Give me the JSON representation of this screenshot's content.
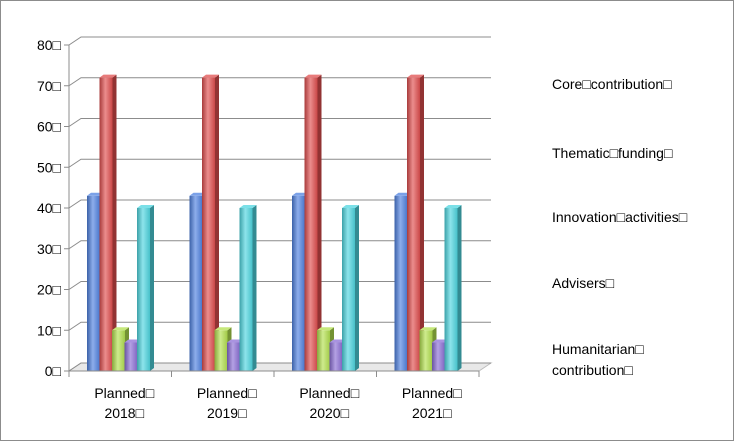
{
  "chart_data": {
    "type": "bar",
    "style": "3d-clustered-column",
    "categories": [
      "Planned□ 2018□",
      "Planned□ 2019□",
      "Planned□ 2020□",
      "Planned□ 2021□"
    ],
    "category_lines": [
      [
        "Planned□",
        "2018□"
      ],
      [
        "Planned□",
        "2019□"
      ],
      [
        "Planned□",
        "2020□"
      ],
      [
        "Planned□",
        "2021□"
      ]
    ],
    "series": [
      {
        "name": "Core□contribution□",
        "legend_lines": [
          "Core□contribution□"
        ],
        "color": "#4f81e0",
        "values": [
          43,
          43,
          43,
          43
        ]
      },
      {
        "name": "Thematic□funding□",
        "legend_lines": [
          "Thematic□funding□"
        ],
        "color": "#e04f4f",
        "values": [
          72,
          72,
          72,
          72
        ]
      },
      {
        "name": "Innovation□activities□",
        "legend_lines": [
          "Innovation□activities□"
        ],
        "color": "#b3e04f",
        "values": [
          10,
          10,
          10,
          10
        ]
      },
      {
        "name": "Advisers□",
        "legend_lines": [
          "Advisers□"
        ],
        "color": "#8c6fd6",
        "values": [
          7,
          7,
          7,
          7
        ]
      },
      {
        "name": "Humanitarian□ contribution□",
        "legend_lines": [
          "Humanitarian□",
          "contribution□"
        ],
        "color": "#4fd6e0",
        "values": [
          40,
          40,
          40,
          40
        ]
      }
    ],
    "ylim": [
      0,
      80
    ],
    "y_ticks": [
      0,
      10,
      20,
      30,
      40,
      50,
      60,
      70,
      80
    ],
    "y_tick_labels": [
      "0□",
      "10□",
      "20□",
      "30□",
      "40□",
      "50□",
      "60□",
      "70□",
      "80□"
    ],
    "grid": true,
    "legend_position": "right",
    "title": "",
    "xlabel": "",
    "ylabel": ""
  }
}
